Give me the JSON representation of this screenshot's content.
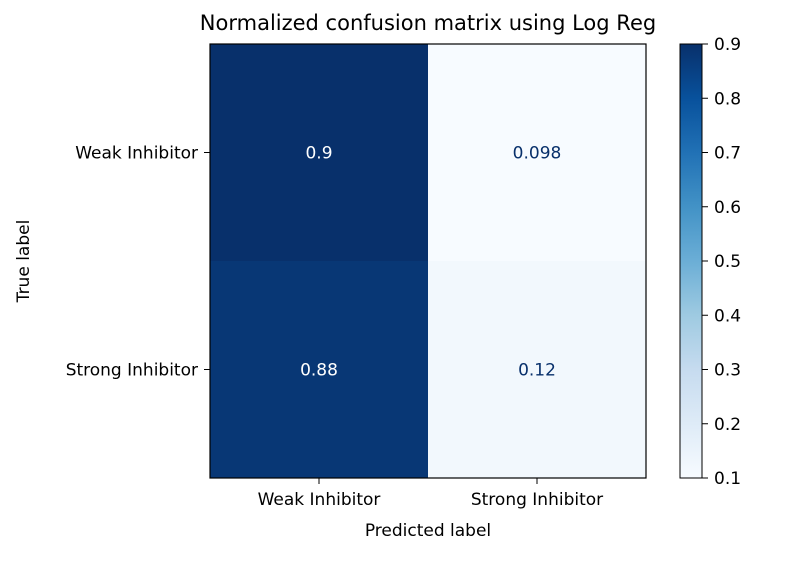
{
  "chart_data": {
    "type": "heatmap",
    "title": "Normalized confusion matrix using Log Reg",
    "xlabel": "Predicted label",
    "ylabel": "True label",
    "x_categories": [
      "Weak Inhibitor",
      "Strong Inhibitor"
    ],
    "y_categories": [
      "Weak Inhibitor",
      "Strong Inhibitor"
    ],
    "values": [
      [
        0.902,
        0.098
      ],
      [
        0.88,
        0.12
      ]
    ],
    "value_labels": [
      [
        "0.9",
        "0.098"
      ],
      [
        "0.88",
        "0.12"
      ]
    ],
    "colormap": "Blues",
    "colorbar": {
      "min": 0.1,
      "max": 0.9,
      "ticks": [
        0.1,
        0.2,
        0.3,
        0.4,
        0.5,
        0.6,
        0.7,
        0.8,
        0.9
      ],
      "tick_labels": [
        "0.1",
        "0.2",
        "0.3",
        "0.4",
        "0.5",
        "0.6",
        "0.7",
        "0.8",
        "0.9"
      ]
    },
    "text_color_light": "#ffffff",
    "text_color_dark": "#08306b"
  }
}
